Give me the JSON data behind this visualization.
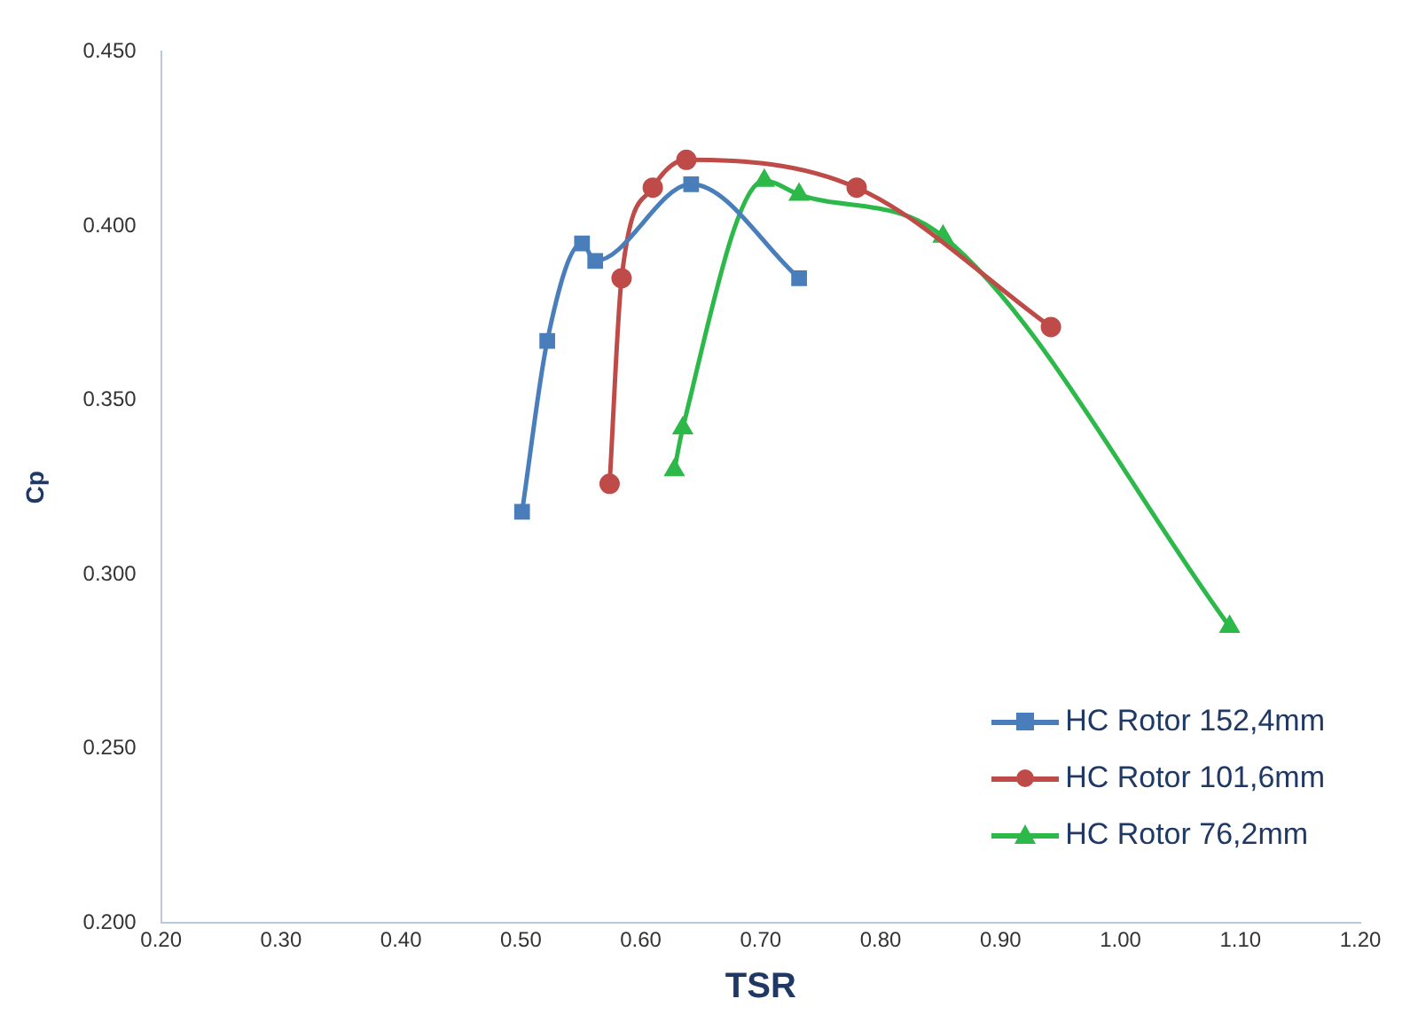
{
  "chart_data": {
    "type": "line",
    "xlabel": "TSR",
    "ylabel": "Cp",
    "xlim": [
      0.2,
      1.2
    ],
    "xticks": [
      {
        "value": 0.2,
        "label": "0.20"
      },
      {
        "value": 0.3,
        "label": "0.30"
      },
      {
        "value": 0.4,
        "label": "0.40"
      },
      {
        "value": 0.5,
        "label": "0.50"
      },
      {
        "value": 0.6,
        "label": "0.60"
      },
      {
        "value": 0.7,
        "label": "0.70"
      },
      {
        "value": 0.8,
        "label": "0.80"
      },
      {
        "value": 0.9,
        "label": "0.90"
      },
      {
        "value": 1.0,
        "label": "1.00"
      },
      {
        "value": 1.1,
        "label": "1.10"
      },
      {
        "value": 1.2,
        "label": "1.20"
      }
    ],
    "ylim": [
      0.2,
      0.45
    ],
    "yticks": [
      {
        "value": 0.2,
        "label": "0.200"
      },
      {
        "value": 0.25,
        "label": "0.250"
      },
      {
        "value": 0.3,
        "label": "0.300"
      },
      {
        "value": 0.35,
        "label": "0.350"
      },
      {
        "value": 0.4,
        "label": "0.400"
      },
      {
        "value": 0.45,
        "label": "0.450"
      }
    ],
    "grid": false,
    "legend": "bottom right",
    "series": [
      {
        "name": "HC Rotor 152,4mm",
        "color": "#4a7ebb",
        "marker": "square",
        "x": [
          0.501,
          0.522,
          0.551,
          0.562,
          0.642,
          0.732
        ],
        "values": [
          0.318,
          0.367,
          0.395,
          0.39,
          0.412,
          0.385
        ]
      },
      {
        "name": "HC Rotor 101,6mm",
        "color": "#be4b48",
        "marker": "circle",
        "x": [
          0.574,
          0.584,
          0.61,
          0.638,
          0.78,
          0.942
        ],
        "values": [
          0.326,
          0.385,
          0.411,
          0.419,
          0.411,
          0.371
        ]
      },
      {
        "name": "HC Rotor 76,2mm",
        "color": "#2db84a",
        "marker": "triangle",
        "x": [
          0.628,
          0.635,
          0.703,
          0.732,
          0.852,
          1.091
        ],
        "values": [
          0.33,
          0.342,
          0.413,
          0.409,
          0.397,
          0.285
        ]
      }
    ]
  }
}
